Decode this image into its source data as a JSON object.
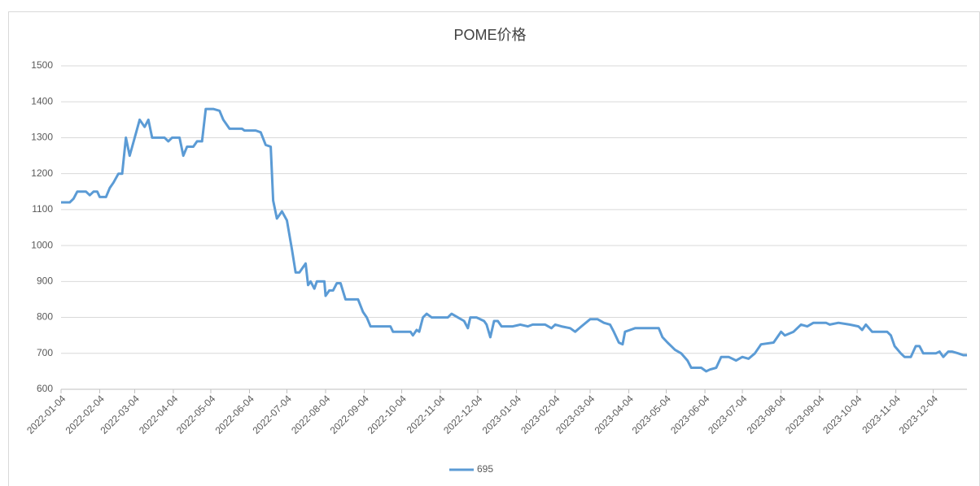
{
  "chart_data": {
    "type": "line",
    "title": "POME价格",
    "x": [
      "2022-01-04",
      "2022-01-11",
      "2022-01-14",
      "2022-01-17",
      "2022-01-24",
      "2022-01-27",
      "2022-01-30",
      "2022-02-02",
      "2022-02-04",
      "2022-02-09",
      "2022-02-12",
      "2022-02-15",
      "2022-02-19",
      "2022-02-22",
      "2022-02-25",
      "2022-02-28",
      "2022-03-04",
      "2022-03-08",
      "2022-03-12",
      "2022-03-15",
      "2022-03-18",
      "2022-03-28",
      "2022-03-31",
      "2022-04-03",
      "2022-04-09",
      "2022-04-12",
      "2022-04-15",
      "2022-04-20",
      "2022-04-23",
      "2022-04-27",
      "2022-04-30",
      "2022-05-06",
      "2022-05-11",
      "2022-05-14",
      "2022-05-19",
      "2022-05-29",
      "2022-05-31",
      "2022-06-09",
      "2022-06-13",
      "2022-06-17",
      "2022-06-21",
      "2022-06-23",
      "2022-06-26",
      "2022-06-30",
      "2022-07-04",
      "2022-07-08",
      "2022-07-11",
      "2022-07-14",
      "2022-07-17",
      "2022-07-19",
      "2022-07-21",
      "2022-07-23",
      "2022-07-26",
      "2022-07-28",
      "2022-08-03",
      "2022-08-04",
      "2022-08-07",
      "2022-08-10",
      "2022-08-13",
      "2022-08-16",
      "2022-08-20",
      "2022-08-30",
      "2022-09-03",
      "2022-09-06",
      "2022-09-09",
      "2022-09-25",
      "2022-09-27",
      "2022-10-11",
      "2022-10-13",
      "2022-10-16",
      "2022-10-18",
      "2022-10-21",
      "2022-10-24",
      "2022-10-28",
      "2022-11-10",
      "2022-11-13",
      "2022-11-18",
      "2022-11-23",
      "2022-11-26",
      "2022-11-28",
      "2022-12-03",
      "2022-12-09",
      "2022-12-11",
      "2022-12-14",
      "2022-12-17",
      "2022-12-20",
      "2022-12-23",
      "2023-01-01",
      "2023-01-07",
      "2023-01-13",
      "2023-01-17",
      "2023-01-27",
      "2023-02-01",
      "2023-02-04",
      "2023-02-09",
      "2023-02-16",
      "2023-02-20",
      "2023-02-25",
      "2023-03-04",
      "2023-03-10",
      "2023-03-15",
      "2023-03-20",
      "2023-03-23",
      "2023-03-27",
      "2023-03-30",
      "2023-04-01",
      "2023-04-05",
      "2023-04-09",
      "2023-04-28",
      "2023-05-01",
      "2023-05-05",
      "2023-05-08",
      "2023-05-11",
      "2023-05-16",
      "2023-05-21",
      "2023-05-24",
      "2023-06-01",
      "2023-06-05",
      "2023-06-08",
      "2023-06-13",
      "2023-06-17",
      "2023-06-23",
      "2023-06-29",
      "2023-07-04",
      "2023-07-09",
      "2023-07-14",
      "2023-07-19",
      "2023-07-29",
      "2023-08-01",
      "2023-08-04",
      "2023-08-07",
      "2023-08-14",
      "2023-08-20",
      "2023-08-25",
      "2023-08-30",
      "2023-09-09",
      "2023-09-12",
      "2023-09-19",
      "2023-09-28",
      "2023-10-05",
      "2023-10-08",
      "2023-10-11",
      "2023-10-16",
      "2023-10-28",
      "2023-10-31",
      "2023-11-03",
      "2023-11-08",
      "2023-11-11",
      "2023-11-16",
      "2023-11-20",
      "2023-11-23",
      "2023-11-26",
      "2023-12-06",
      "2023-12-09",
      "2023-12-12",
      "2023-12-16",
      "2023-12-19",
      "2023-12-24",
      "2023-12-28",
      "2023-12-31"
    ],
    "series": [
      {
        "name": "695",
        "color": "#5b9bd5",
        "values": [
          1120,
          1120,
          1130,
          1150,
          1150,
          1140,
          1150,
          1150,
          1135,
          1135,
          1160,
          1175,
          1200,
          1200,
          1300,
          1250,
          1300,
          1350,
          1330,
          1350,
          1300,
          1300,
          1290,
          1300,
          1300,
          1250,
          1275,
          1275,
          1290,
          1290,
          1380,
          1380,
          1375,
          1350,
          1325,
          1325,
          1320,
          1320,
          1315,
          1280,
          1275,
          1125,
          1075,
          1095,
          1070,
          990,
          925,
          925,
          940,
          950,
          890,
          900,
          880,
          900,
          900,
          860,
          875,
          875,
          895,
          895,
          850,
          850,
          815,
          800,
          775,
          775,
          760,
          760,
          750,
          765,
          760,
          800,
          810,
          800,
          800,
          810,
          800,
          790,
          770,
          800,
          800,
          790,
          780,
          745,
          790,
          790,
          775,
          775,
          780,
          775,
          780,
          780,
          770,
          780,
          775,
          770,
          760,
          775,
          795,
          795,
          785,
          780,
          760,
          730,
          725,
          760,
          765,
          770,
          770,
          745,
          730,
          720,
          710,
          700,
          680,
          660,
          660,
          650,
          655,
          660,
          690,
          690,
          680,
          690,
          685,
          700,
          725,
          730,
          745,
          760,
          750,
          760,
          780,
          775,
          785,
          785,
          780,
          785,
          780,
          775,
          765,
          780,
          760,
          760,
          750,
          720,
          700,
          690,
          690,
          720,
          720,
          700,
          700,
          705,
          690,
          705,
          705,
          700,
          695,
          695
        ]
      }
    ],
    "xlim": [
      "2022-01-04",
      "2023-12-31"
    ],
    "xticks": [
      "2022-01-04",
      "2022-02-04",
      "2022-03-04",
      "2022-04-04",
      "2022-05-04",
      "2022-06-04",
      "2022-07-04",
      "2022-08-04",
      "2022-09-04",
      "2022-10-04",
      "2022-11-04",
      "2022-12-04",
      "2023-01-04",
      "2023-02-04",
      "2023-03-04",
      "2023-04-04",
      "2023-05-04",
      "2023-06-04",
      "2023-07-04",
      "2023-08-04",
      "2023-09-04",
      "2023-10-04",
      "2023-11-04",
      "2023-12-04"
    ],
    "ylim": [
      600,
      1500
    ],
    "yticks": [
      600,
      700,
      800,
      900,
      1000,
      1100,
      1200,
      1300,
      1400,
      1500
    ],
    "grid": true,
    "legend": "bottom"
  }
}
